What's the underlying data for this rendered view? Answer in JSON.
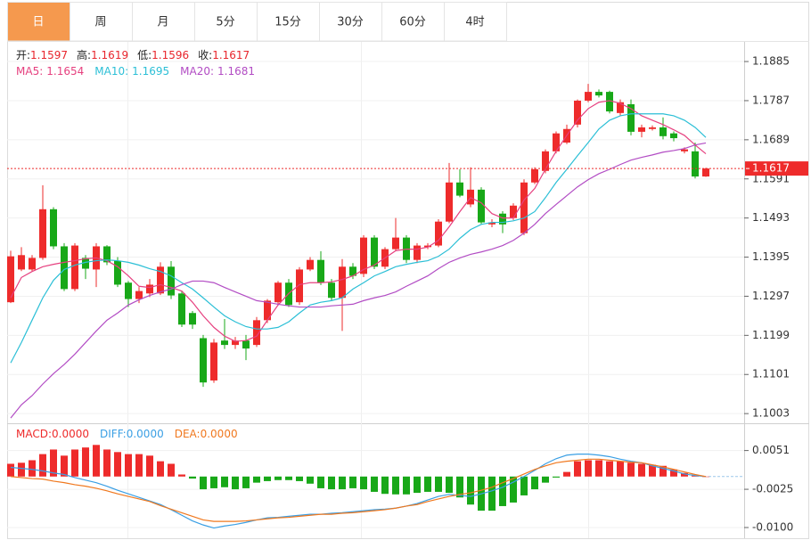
{
  "tabs": [
    "日",
    "周",
    "月",
    "5分",
    "15分",
    "30分",
    "60分",
    "4时"
  ],
  "active_tab": 0,
  "chart_data": [
    {
      "type": "candlestick",
      "ohlc_labels": [
        "开:",
        "高:",
        "低:",
        "收:"
      ],
      "up_color": "#ee2b2b",
      "down_color": "#18a818",
      "label_color": "#e8262d",
      "open": [
        1.1282,
        1.1364,
        1.1364,
        1.1393,
        1.1515,
        1.1422,
        1.1315,
        1.1393,
        1.1364,
        1.1422,
        1.1386,
        1.1331,
        1.129,
        1.1304,
        1.1304,
        1.1371,
        1.1304,
        1.1255,
        1.1192,
        1.1086,
        1.1186,
        1.1175,
        1.1186,
        1.1175,
        1.1237,
        1.1282,
        1.1331,
        1.1282,
        1.1364,
        1.1388,
        1.1331,
        1.1293,
        1.1371,
        1.1353,
        1.1444,
        1.1371,
        1.1415,
        1.1444,
        1.1388,
        1.142,
        1.1424,
        1.1484,
        1.1582,
        1.1527,
        1.1564,
        1.1477,
        1.1504,
        1.1493,
        1.1455,
        1.1582,
        1.1611,
        1.166,
        1.1682,
        1.1727,
        1.1787,
        1.1809,
        1.1809,
        1.1756,
        1.1778,
        1.1709,
        1.1716,
        1.172,
        1.1705,
        1.166,
        1.166,
        1.1597
      ],
      "high": [
        1.1411,
        1.142,
        1.14,
        1.1575,
        1.152,
        1.143,
        1.143,
        1.14,
        1.143,
        1.1425,
        1.1395,
        1.1335,
        1.132,
        1.134,
        1.1382,
        1.1385,
        1.131,
        1.126,
        1.12,
        1.119,
        1.124,
        1.1195,
        1.12,
        1.1245,
        1.129,
        1.1335,
        1.134,
        1.137,
        1.1395,
        1.141,
        1.134,
        1.139,
        1.138,
        1.145,
        1.145,
        1.142,
        1.1493,
        1.145,
        1.143,
        1.143,
        1.149,
        1.1631,
        1.1615,
        1.162,
        1.157,
        1.149,
        1.151,
        1.153,
        1.159,
        1.162,
        1.1665,
        1.171,
        1.1727,
        1.179,
        1.1829,
        1.1815,
        1.1812,
        1.179,
        1.179,
        1.1727,
        1.1725,
        1.1745,
        1.171,
        1.167,
        1.1682,
        1.1619
      ],
      "low": [
        1.128,
        1.136,
        1.136,
        1.1388,
        1.1415,
        1.131,
        1.131,
        1.134,
        1.132,
        1.1375,
        1.132,
        1.127,
        1.128,
        1.1295,
        1.13,
        1.129,
        1.122,
        1.1215,
        1.107,
        1.108,
        1.1165,
        1.1165,
        1.1137,
        1.117,
        1.123,
        1.1275,
        1.127,
        1.1275,
        1.136,
        1.1325,
        1.1285,
        1.121,
        1.134,
        1.1345,
        1.1365,
        1.1365,
        1.141,
        1.138,
        1.138,
        1.1415,
        1.142,
        1.148,
        1.1545,
        1.152,
        1.1478,
        1.147,
        1.1455,
        1.1488,
        1.145,
        1.1578,
        1.1605,
        1.1655,
        1.1678,
        1.172,
        1.1783,
        1.1795,
        1.1755,
        1.175,
        1.17,
        1.1695,
        1.1712,
        1.169,
        1.1685,
        1.1655,
        1.1592,
        1.1596
      ],
      "close": [
        1.1397,
        1.14,
        1.1393,
        1.1515,
        1.1422,
        1.1315,
        1.1424,
        1.1366,
        1.1422,
        1.1382,
        1.1326,
        1.129,
        1.131,
        1.1326,
        1.1371,
        1.1299,
        1.1226,
        1.1226,
        1.1081,
        1.1181,
        1.1175,
        1.1186,
        1.1166,
        1.1237,
        1.1286,
        1.1331,
        1.1275,
        1.1364,
        1.1388,
        1.1331,
        1.1293,
        1.1371,
        1.1348,
        1.1444,
        1.1371,
        1.1415,
        1.1444,
        1.1388,
        1.1424,
        1.1424,
        1.1484,
        1.1582,
        1.1549,
        1.1564,
        1.1482,
        1.1482,
        1.1477,
        1.1524,
        1.1582,
        1.1615,
        1.166,
        1.1705,
        1.1716,
        1.1787,
        1.1809,
        1.18,
        1.176,
        1.1783,
        1.1709,
        1.172,
        1.172,
        1.1698,
        1.1693,
        1.1665,
        1.1597,
        1.1617
      ],
      "series": [
        {
          "name": "MA5:",
          "color": "#e6407f",
          "values": [
            1.1293,
            1.1344,
            1.1359,
            1.1371,
            1.1377,
            1.1382,
            1.1386,
            1.1391,
            1.1393,
            1.1386,
            1.1371,
            1.1348,
            1.1322,
            1.1319,
            1.1326,
            1.1319,
            1.131,
            1.1282,
            1.1248,
            1.1219,
            1.1197,
            1.1184,
            1.1186,
            1.1197,
            1.1237,
            1.1275,
            1.1304,
            1.1326,
            1.1331,
            1.1331,
            1.1333,
            1.1339,
            1.1348,
            1.1364,
            1.1375,
            1.1393,
            1.1411,
            1.1415,
            1.1415,
            1.142,
            1.1437,
            1.1471,
            1.1509,
            1.1544,
            1.1531,
            1.1504,
            1.1493,
            1.1493,
            1.1538,
            1.1567,
            1.1615,
            1.166,
            1.17,
            1.1738,
            1.1767,
            1.1783,
            1.1787,
            1.178,
            1.1767,
            1.1749,
            1.1738,
            1.1727,
            1.1714,
            1.17,
            1.1676,
            1.1654
          ]
        },
        {
          "name": "MA10:",
          "color": "#2bbfd6",
          "values": [
            1.113,
            1.1181,
            1.1237,
            1.1293,
            1.1337,
            1.1364,
            1.1375,
            1.1382,
            1.1386,
            1.1388,
            1.1386,
            1.1382,
            1.1375,
            1.1366,
            1.1359,
            1.1348,
            1.1331,
            1.1315,
            1.1293,
            1.127,
            1.1248,
            1.1233,
            1.1221,
            1.1215,
            1.1215,
            1.1219,
            1.1233,
            1.1255,
            1.1275,
            1.1282,
            1.1286,
            1.1293,
            1.1315,
            1.1331,
            1.1348,
            1.1359,
            1.1371,
            1.1377,
            1.1382,
            1.1386,
            1.1397,
            1.1415,
            1.1442,
            1.1464,
            1.1477,
            1.1482,
            1.1482,
            1.1486,
            1.1493,
            1.1509,
            1.1544,
            1.1582,
            1.1615,
            1.1649,
            1.1682,
            1.1716,
            1.1738,
            1.1749,
            1.1754,
            1.1754,
            1.1754,
            1.1754,
            1.1749,
            1.1738,
            1.172,
            1.1695
          ]
        },
        {
          "name": "MA20:",
          "color": "#b24cc4",
          "values": [
            1.0992,
            1.1025,
            1.1048,
            1.1077,
            1.1103,
            1.1126,
            1.1152,
            1.1181,
            1.121,
            1.1237,
            1.1255,
            1.1275,
            1.1288,
            1.1299,
            1.1308,
            1.1315,
            1.1326,
            1.1335,
            1.1335,
            1.1331,
            1.1319,
            1.1308,
            1.1297,
            1.1286,
            1.1282,
            1.1277,
            1.1273,
            1.127,
            1.127,
            1.127,
            1.1273,
            1.1275,
            1.1277,
            1.1286,
            1.1293,
            1.1299,
            1.1308,
            1.1322,
            1.1335,
            1.1348,
            1.1366,
            1.1382,
            1.1393,
            1.1402,
            1.1408,
            1.1415,
            1.1424,
            1.1437,
            1.1455,
            1.1477,
            1.1504,
            1.1527,
            1.1549,
            1.1571,
            1.1589,
            1.1604,
            1.1615,
            1.1627,
            1.1638,
            1.1645,
            1.1651,
            1.1658,
            1.1662,
            1.1667,
            1.1676,
            1.1681
          ]
        }
      ],
      "ylim": [
        1.0981,
        1.1932
      ],
      "yticks": [
        1.1885,
        1.1787,
        1.1689,
        1.1591,
        1.1493,
        1.1395,
        1.1297,
        1.1199,
        1.1101,
        1.1003
      ],
      "grid": true
    },
    {
      "type": "macd",
      "series": [
        {
          "name": "MACD:",
          "color": "#ee2b2b",
          "down_color": "#18a818",
          "value_label": "0.0000",
          "values": [
            0.0025,
            0.0027,
            0.0032,
            0.0044,
            0.0053,
            0.0041,
            0.0053,
            0.0057,
            0.0062,
            0.0053,
            0.0048,
            0.0044,
            0.0044,
            0.0041,
            0.003,
            0.0025,
            0.0004,
            -0.0004,
            -0.0025,
            -0.0023,
            -0.0021,
            -0.0025,
            -0.0023,
            -0.0012,
            -0.0009,
            -0.0007,
            -0.0007,
            -0.0009,
            -0.0014,
            -0.0023,
            -0.0025,
            -0.0025,
            -0.0023,
            -0.0025,
            -0.003,
            -0.0034,
            -0.0035,
            -0.0035,
            -0.0032,
            -0.003,
            -0.003,
            -0.0032,
            -0.0041,
            -0.0055,
            -0.0067,
            -0.0067,
            -0.0058,
            -0.0051,
            -0.0037,
            -0.0025,
            -0.0012,
            -0.0002,
            0.0009,
            0.003,
            0.0032,
            0.0032,
            0.003,
            0.003,
            0.0027,
            0.0025,
            0.0023,
            0.0021,
            0.0014,
            0.0007,
            0.0002,
            0
          ]
        },
        {
          "name": "DIFF:",
          "color": "#3a9fe4",
          "value_label": "0.0000",
          "values": [
            0.0018,
            0.0016,
            0.0014,
            0.0011,
            0.0007,
            0.0004,
            -0.0002,
            -0.0007,
            -0.0012,
            -0.0019,
            -0.0027,
            -0.0034,
            -0.0041,
            -0.0048,
            -0.0055,
            -0.0065,
            -0.0076,
            -0.0087,
            -0.0095,
            -0.0101,
            -0.0097,
            -0.0094,
            -0.009,
            -0.0085,
            -0.0081,
            -0.008,
            -0.0078,
            -0.0076,
            -0.0074,
            -0.0074,
            -0.0072,
            -0.0071,
            -0.0069,
            -0.0067,
            -0.0065,
            -0.0064,
            -0.0062,
            -0.0058,
            -0.0053,
            -0.0046,
            -0.0039,
            -0.0035,
            -0.0037,
            -0.0039,
            -0.0034,
            -0.0028,
            -0.0021,
            -0.0011,
            0,
            0.0012,
            0.0025,
            0.0035,
            0.0042,
            0.0044,
            0.0044,
            0.0042,
            0.0039,
            0.0034,
            0.003,
            0.0027,
            0.0021,
            0.0016,
            0.0011,
            0.0005,
            0.0002,
            0
          ]
        },
        {
          "name": "DEA:",
          "color": "#f0781e",
          "value_label": "0.0000",
          "values": [
            0,
            -0.0002,
            -0.0004,
            -0.0005,
            -0.0009,
            -0.0012,
            -0.0016,
            -0.0019,
            -0.0023,
            -0.0028,
            -0.0034,
            -0.0039,
            -0.0044,
            -0.0049,
            -0.0057,
            -0.0064,
            -0.0071,
            -0.0078,
            -0.0085,
            -0.0088,
            -0.0088,
            -0.0088,
            -0.0087,
            -0.0085,
            -0.0083,
            -0.0081,
            -0.008,
            -0.0078,
            -0.0076,
            -0.0074,
            -0.0074,
            -0.0072,
            -0.0071,
            -0.0069,
            -0.0067,
            -0.0065,
            -0.0062,
            -0.0058,
            -0.0055,
            -0.0049,
            -0.0044,
            -0.0039,
            -0.0035,
            -0.0032,
            -0.0027,
            -0.0021,
            -0.0012,
            -0.0004,
            0.0005,
            0.0014,
            0.0021,
            0.0027,
            0.003,
            0.0032,
            0.0034,
            0.0034,
            0.0032,
            0.003,
            0.0028,
            0.0027,
            0.0023,
            0.0019,
            0.0014,
            0.0009,
            0.0004,
            0
          ]
        }
      ],
      "ylim": [
        -0.0121,
        0.0101
      ],
      "yticks": [
        0.0051,
        -0.0025,
        {
          "value": -0.01,
          "label": "-0.0100"
        }
      ],
      "grid": true
    }
  ]
}
